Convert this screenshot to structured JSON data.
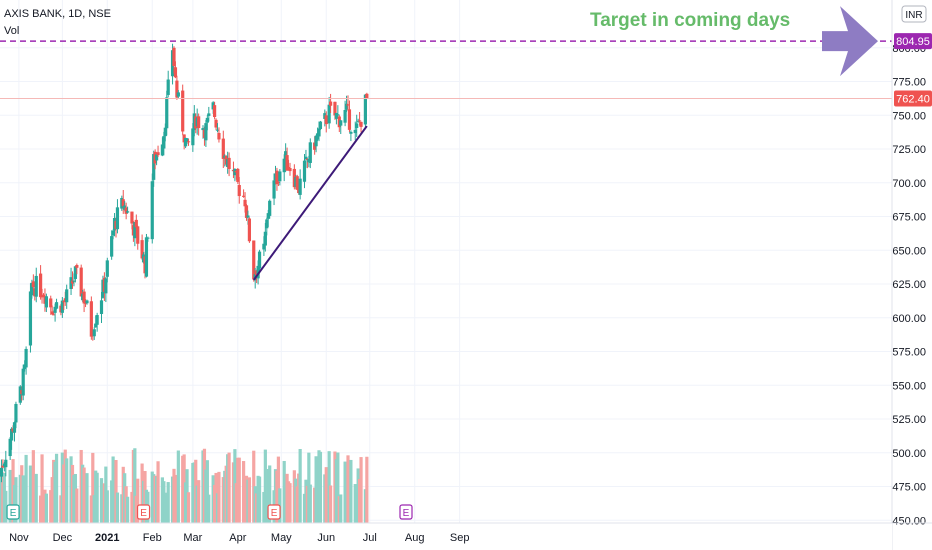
{
  "header": {
    "symbol_line": "AXIS BANK, 1D, NSE",
    "volume_label": "Vol"
  },
  "currency_badge": "INR",
  "colors": {
    "up": "#26a69a",
    "down": "#ef5350",
    "up_vol": "#8fd3c8",
    "down_vol": "#f5a5a3",
    "target": "#9c27b0",
    "arrow": "#8e7cc3",
    "trend": "#3d1a78",
    "annotation": "#66bb6a",
    "last_price": "#ef5350"
  },
  "annotation": {
    "text": "Target in coming days"
  },
  "target_line": {
    "value": 804.95,
    "label": "804.95"
  },
  "last_price": {
    "value": 762.4,
    "label": "762.40"
  },
  "earnings_markers": [
    {
      "date": "2020-10-28",
      "label": "E",
      "state": "past"
    },
    {
      "date": "2021-01-26",
      "label": "E",
      "state": "past"
    },
    {
      "date": "2021-04-26",
      "label": "E",
      "state": "past"
    },
    {
      "date": "2021-07-26",
      "label": "E",
      "state": "future"
    }
  ],
  "chart_data": {
    "type": "candlestick",
    "title": "AXIS BANK, 1D, NSE",
    "x_axis": {
      "ticks": [
        "Nov",
        "Dec",
        "2021",
        "Feb",
        "Mar",
        "Apr",
        "May",
        "Jun",
        "Jul",
        "Aug",
        "Sep"
      ]
    },
    "y_axis": {
      "ticks": [
        "450.00",
        "475.00",
        "500.00",
        "525.00",
        "550.00",
        "575.00",
        "600.00",
        "625.00",
        "650.00",
        "675.00",
        "700.00",
        "725.00",
        "750.00",
        "775.00",
        "800.00"
      ],
      "range": [
        445,
        825
      ],
      "side": "right"
    },
    "trendline": {
      "from": {
        "date": "2021-04-12",
        "value": 628
      },
      "to": {
        "date": "2021-06-29",
        "value": 742
      }
    },
    "price_path": [
      [
        "2020-10-19",
        485
      ],
      [
        "2020-10-27",
        515
      ],
      [
        "2020-11-05",
        560
      ],
      [
        "2020-11-10",
        625
      ],
      [
        "2020-11-18",
        620
      ],
      [
        "2020-11-24",
        608
      ],
      [
        "2020-12-03",
        612
      ],
      [
        "2020-12-10",
        632
      ],
      [
        "2020-12-17",
        612
      ],
      [
        "2020-12-21",
        590
      ],
      [
        "2020-12-30",
        625
      ],
      [
        "2021-01-06",
        670
      ],
      [
        "2021-01-12",
        685
      ],
      [
        "2021-01-20",
        665
      ],
      [
        "2021-01-27",
        640
      ],
      [
        "2021-02-02",
        715
      ],
      [
        "2021-02-09",
        738
      ],
      [
        "2021-02-15",
        800
      ],
      [
        "2021-02-18",
        765
      ],
      [
        "2021-02-25",
        725
      ],
      [
        "2021-03-03",
        748
      ],
      [
        "2021-03-10",
        740
      ],
      [
        "2021-03-15",
        755
      ],
      [
        "2021-03-23",
        720
      ],
      [
        "2021-03-31",
        700
      ],
      [
        "2021-04-06",
        688
      ],
      [
        "2021-04-12",
        632
      ],
      [
        "2021-04-19",
        650
      ],
      [
        "2021-04-23",
        690
      ],
      [
        "2021-05-03",
        718
      ],
      [
        "2021-05-07",
        712
      ],
      [
        "2021-05-13",
        696
      ],
      [
        "2021-05-20",
        720
      ],
      [
        "2021-05-26",
        735
      ],
      [
        "2021-06-03",
        752
      ],
      [
        "2021-06-10",
        748
      ],
      [
        "2021-06-15",
        752
      ],
      [
        "2021-06-21",
        736
      ],
      [
        "2021-06-25",
        748
      ],
      [
        "2021-06-29",
        762.4
      ]
    ]
  }
}
